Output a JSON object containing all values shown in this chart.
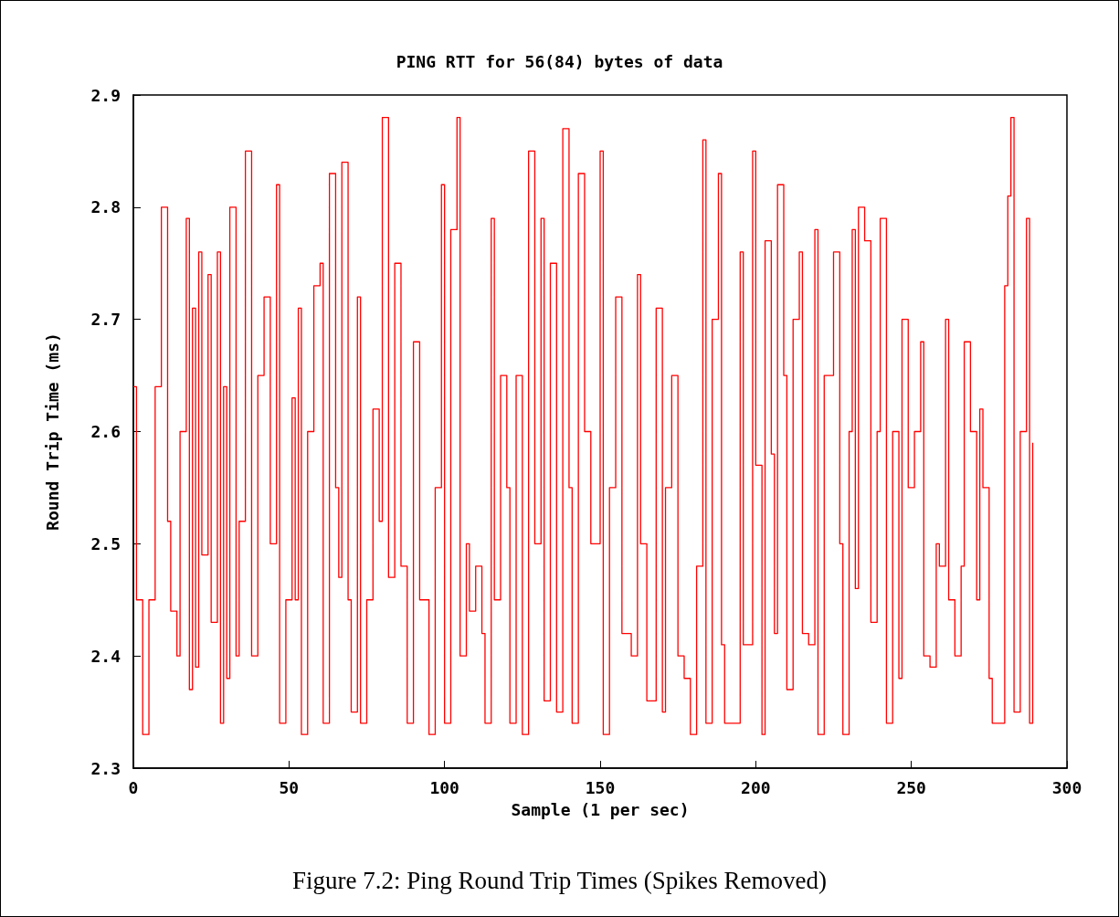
{
  "chart_data": {
    "type": "step",
    "title": "PING RTT for 56(84) bytes of data",
    "xlabel": "Sample (1 per sec)",
    "ylabel": "Round Trip Time (ms)",
    "annotations": [
      "Figure 7.2: Ping Round Trip Times (Spikes Removed)"
    ],
    "x": [
      0,
      1,
      3,
      5,
      7,
      9,
      11,
      12,
      14,
      15,
      17,
      18,
      19,
      20,
      21,
      22,
      24,
      25,
      27,
      28,
      29,
      30,
      31,
      33,
      34,
      36,
      38,
      40,
      42,
      44,
      46,
      47,
      49,
      51,
      52,
      53,
      54,
      56,
      58,
      60,
      61,
      63,
      65,
      66,
      67,
      69,
      70,
      72,
      73,
      75,
      77,
      79,
      80,
      82,
      84,
      86,
      88,
      90,
      92,
      95,
      97,
      99,
      100,
      102,
      104,
      105,
      107,
      108,
      110,
      112,
      113,
      115,
      116,
      118,
      120,
      121,
      123,
      125,
      127,
      129,
      131,
      132,
      134,
      136,
      138,
      140,
      141,
      143,
      145,
      147,
      150,
      151,
      153,
      155,
      157,
      160,
      162,
      163,
      165,
      168,
      170,
      171,
      173,
      175,
      177,
      179,
      181,
      183,
      184,
      186,
      188,
      189,
      190,
      193,
      195,
      196,
      199,
      200,
      202,
      203,
      205,
      206,
      207,
      209,
      210,
      212,
      214,
      215,
      217,
      219,
      220,
      222,
      225,
      227,
      228,
      230,
      231,
      232,
      233,
      235,
      237,
      239,
      240,
      242,
      244,
      246,
      247,
      249,
      251,
      253,
      254,
      256,
      258,
      259,
      261,
      262,
      264,
      266,
      267,
      269,
      271,
      272,
      273,
      275,
      276,
      278,
      280,
      281,
      282,
      283,
      285,
      287,
      288,
      289
    ],
    "series": [
      {
        "color": "#ff0000",
        "values": [
          2.64,
          2.45,
          2.33,
          2.45,
          2.64,
          2.8,
          2.52,
          2.44,
          2.4,
          2.6,
          2.79,
          2.37,
          2.71,
          2.39,
          2.76,
          2.49,
          2.74,
          2.43,
          2.76,
          2.34,
          2.64,
          2.38,
          2.8,
          2.4,
          2.52,
          2.85,
          2.4,
          2.65,
          2.72,
          2.5,
          2.82,
          2.34,
          2.45,
          2.63,
          2.45,
          2.71,
          2.33,
          2.6,
          2.73,
          2.75,
          2.34,
          2.83,
          2.55,
          2.47,
          2.84,
          2.45,
          2.35,
          2.72,
          2.34,
          2.45,
          2.62,
          2.52,
          2.88,
          2.47,
          2.75,
          2.48,
          2.34,
          2.68,
          2.45,
          2.33,
          2.55,
          2.82,
          2.34,
          2.78,
          2.88,
          2.4,
          2.5,
          2.44,
          2.48,
          2.42,
          2.34,
          2.79,
          2.45,
          2.65,
          2.55,
          2.34,
          2.65,
          2.33,
          2.85,
          2.5,
          2.79,
          2.36,
          2.75,
          2.35,
          2.87,
          2.55,
          2.34,
          2.83,
          2.6,
          2.5,
          2.85,
          2.33,
          2.55,
          2.72,
          2.42,
          2.4,
          2.74,
          2.5,
          2.36,
          2.71,
          2.35,
          2.55,
          2.65,
          2.4,
          2.38,
          2.33,
          2.48,
          2.86,
          2.34,
          2.7,
          2.83,
          2.41,
          2.34,
          2.34,
          2.76,
          2.41,
          2.85,
          2.57,
          2.33,
          2.77,
          2.58,
          2.42,
          2.82,
          2.65,
          2.37,
          2.7,
          2.76,
          2.42,
          2.41,
          2.78,
          2.33,
          2.65,
          2.76,
          2.5,
          2.33,
          2.6,
          2.78,
          2.46,
          2.8,
          2.77,
          2.43,
          2.6,
          2.79,
          2.34,
          2.6,
          2.38,
          2.7,
          2.55,
          2.6,
          2.68,
          2.4,
          2.39,
          2.5,
          2.48,
          2.7,
          2.45,
          2.4,
          2.48,
          2.68,
          2.6,
          2.45,
          2.62,
          2.55,
          2.38,
          2.34,
          2.34,
          2.73,
          2.81,
          2.88,
          2.35,
          2.6,
          2.79,
          2.34,
          2.59
        ]
      }
    ],
    "xlim": [
      0,
      300
    ],
    "xticks": [
      0,
      50,
      100,
      150,
      200,
      250,
      300
    ],
    "ylim": [
      2.3,
      2.9
    ],
    "yticks": [
      2.3,
      2.4,
      2.5,
      2.6,
      2.7,
      2.8,
      2.9
    ],
    "grid": false,
    "marker": "none",
    "line_style": "solid"
  }
}
